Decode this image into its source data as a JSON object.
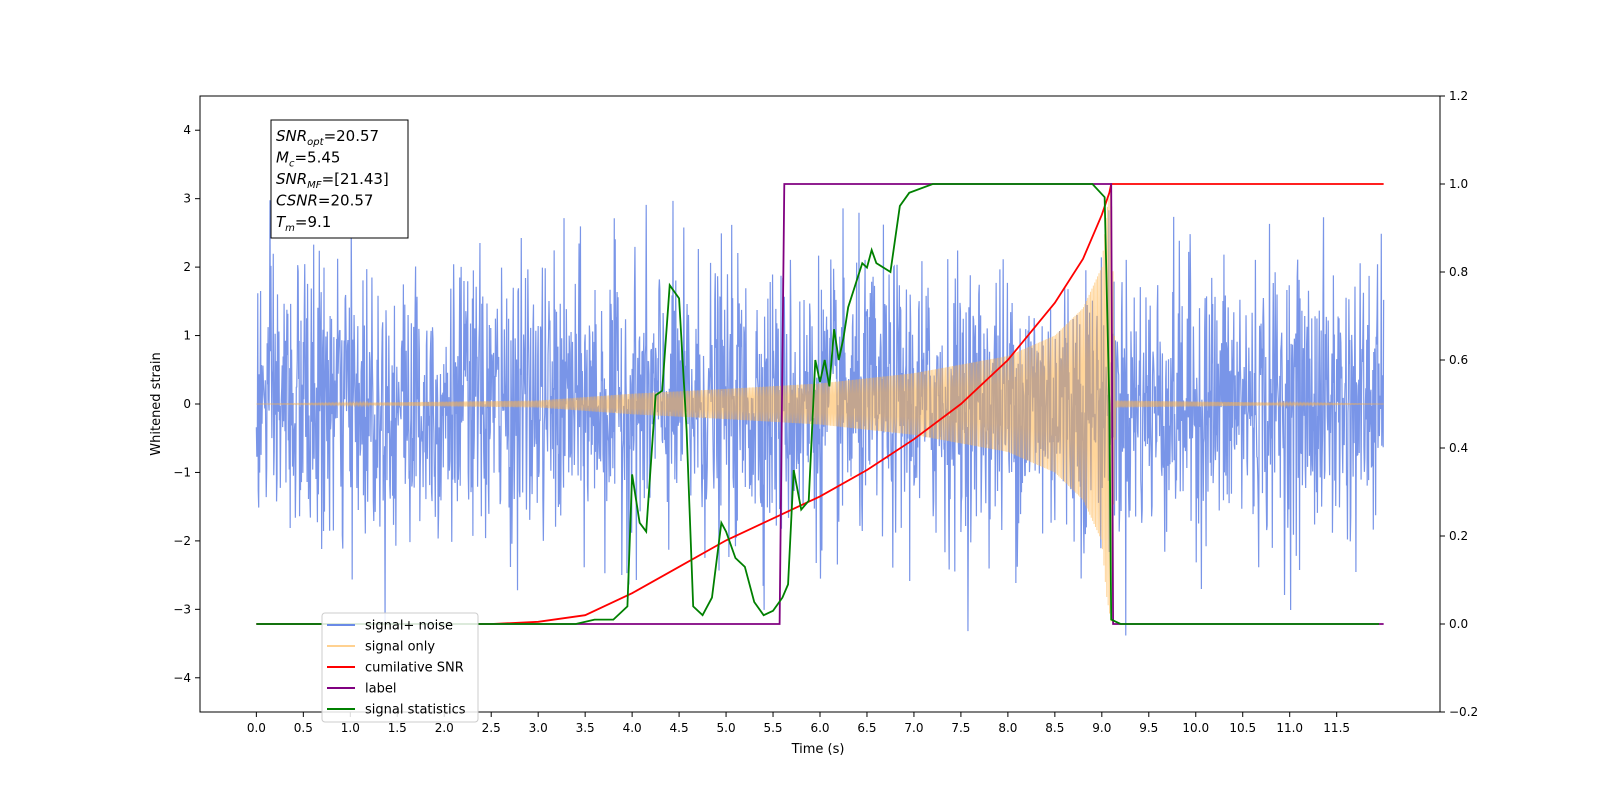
{
  "chart_data": {
    "type": "line",
    "xlabel": "Time (s)",
    "ylabel_left": "Whitened strain",
    "ylabel_right": "",
    "xlim": [
      -0.6,
      12.6
    ],
    "ylim_left": [
      -4.5,
      4.5
    ],
    "ylim_right": [
      -0.2,
      1.2
    ],
    "x_ticks": [
      0.0,
      0.5,
      1.0,
      1.5,
      2.0,
      2.5,
      3.0,
      3.5,
      4.0,
      4.5,
      5.0,
      5.5,
      6.0,
      6.5,
      7.0,
      7.5,
      8.0,
      8.5,
      9.0,
      9.5,
      10.0,
      10.5,
      11.0,
      11.5
    ],
    "x_tick_labels": [
      "0.0",
      "0.5",
      "1.0",
      "1.5",
      "2.0",
      "2.5",
      "3.0",
      "3.5",
      "4.0",
      "4.5",
      "5.0",
      "5.5",
      "6.0",
      "6.5",
      "7.0",
      "7.5",
      "8.0",
      "8.5",
      "9.0",
      "9.5",
      "10.0",
      "10.5",
      "11.0",
      "11.5"
    ],
    "y_left_ticks": [
      -4,
      -3,
      -2,
      -1,
      0,
      1,
      2,
      3,
      4
    ],
    "y_left_tick_labels": [
      "−4",
      "−3",
      "−2",
      "−1",
      "0",
      "1",
      "2",
      "3",
      "4"
    ],
    "y_right_ticks": [
      -0.2,
      0.0,
      0.2,
      0.4,
      0.6,
      0.8,
      1.0,
      1.2
    ],
    "y_right_tick_labels": [
      "−0.2",
      "0.0",
      "0.2",
      "0.4",
      "0.6",
      "0.8",
      "1.0",
      "1.2"
    ],
    "grid": false,
    "legend_position": "lower-left",
    "annotation": {
      "lines": [
        {
          "base": "SNR",
          "sub": "opt",
          "rest": "=20.57"
        },
        {
          "base": "M",
          "sub": "c",
          "rest": "=5.45"
        },
        {
          "base": "SNR",
          "sub": "MF",
          "rest": "=[21.43]"
        },
        {
          "base": "CSNR",
          "sub": "",
          "rest": "=20.57"
        },
        {
          "base": "T",
          "sub": "m",
          "rest": "=9.1"
        }
      ]
    },
    "series": [
      {
        "name": "signal+ noise",
        "axis": "left",
        "color": "#6a8ae6",
        "kind": "noise",
        "x_range": [
          0.0,
          12.0
        ],
        "std": 1.0,
        "extent_range": [
          -4.05,
          3.7
        ]
      },
      {
        "name": "signal only",
        "axis": "left",
        "color": "#ffb347",
        "kind": "chirp",
        "x_range": [
          0.0,
          12.0
        ],
        "merger_time": 9.1,
        "envelope": {
          "x": [
            0.0,
            3.0,
            4.0,
            5.0,
            6.0,
            7.0,
            8.0,
            8.5,
            8.8,
            9.0,
            9.05,
            9.1,
            9.15,
            12.0
          ],
          "amp": [
            0.0,
            0.05,
            0.15,
            0.22,
            0.3,
            0.45,
            0.7,
            1.0,
            1.4,
            2.0,
            2.8,
            3.2,
            0.05,
            0.0
          ]
        }
      },
      {
        "name": "cumilative SNR",
        "axis": "right",
        "color": "#ff0000",
        "x": [
          0.0,
          2.5,
          3.0,
          3.5,
          4.0,
          4.5,
          5.0,
          5.5,
          6.0,
          6.5,
          7.0,
          7.5,
          8.0,
          8.5,
          8.8,
          9.0,
          9.08,
          9.1,
          12.0
        ],
        "y": [
          0.0,
          0.0,
          0.005,
          0.02,
          0.07,
          0.13,
          0.19,
          0.24,
          0.29,
          0.35,
          0.42,
          0.5,
          0.6,
          0.73,
          0.83,
          0.93,
          0.98,
          1.0,
          1.0
        ]
      },
      {
        "name": "label",
        "axis": "right",
        "color": "#800080",
        "x": [
          0.0,
          5.57,
          5.62,
          9.1,
          9.12,
          12.0
        ],
        "y": [
          0.0,
          0.0,
          1.0,
          1.0,
          0.0,
          0.0
        ]
      },
      {
        "name": "signal statistics",
        "axis": "right",
        "color": "#008000",
        "x": [
          0.0,
          3.4,
          3.6,
          3.8,
          3.95,
          4.0,
          4.08,
          4.15,
          4.25,
          4.32,
          4.4,
          4.5,
          4.58,
          4.65,
          4.75,
          4.85,
          4.95,
          5.0,
          5.1,
          5.2,
          5.3,
          5.4,
          5.5,
          5.6,
          5.66,
          5.72,
          5.8,
          5.88,
          5.95,
          6.0,
          6.05,
          6.1,
          6.15,
          6.2,
          6.25,
          6.3,
          6.45,
          6.5,
          6.55,
          6.6,
          6.75,
          6.85,
          6.95,
          7.2,
          7.5,
          8.9,
          9.03,
          9.08,
          9.1,
          9.2,
          11.95
        ],
        "y": [
          0.0,
          0.0,
          0.01,
          0.01,
          0.04,
          0.34,
          0.23,
          0.21,
          0.52,
          0.53,
          0.77,
          0.74,
          0.44,
          0.04,
          0.02,
          0.06,
          0.23,
          0.21,
          0.15,
          0.13,
          0.05,
          0.02,
          0.03,
          0.06,
          0.09,
          0.35,
          0.26,
          0.28,
          0.6,
          0.55,
          0.6,
          0.54,
          0.67,
          0.6,
          0.65,
          0.72,
          0.82,
          0.81,
          0.85,
          0.82,
          0.8,
          0.95,
          0.98,
          1.0,
          1.0,
          1.0,
          0.97,
          0.5,
          0.01,
          0.0,
          0.0
        ]
      }
    ]
  }
}
